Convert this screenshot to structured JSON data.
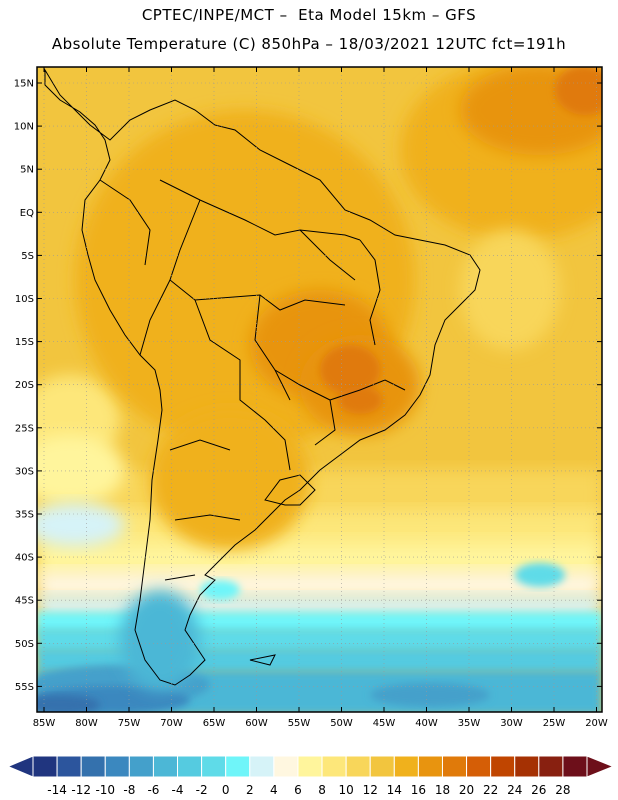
{
  "title_line1": "CPTEC/INPE/MCT –  Eta Model 15km – GFS",
  "title_line2": "Absolute Temperature (C) 850hPa – 18/03/2021 12UTC fct=191h",
  "map": {
    "lat_ticks": [
      "15N",
      "10N",
      "5N",
      "EQ",
      "5S",
      "10S",
      "15S",
      "20S",
      "25S",
      "30S",
      "35S",
      "40S",
      "45S",
      "50S",
      "55S"
    ],
    "lon_ticks": [
      "85W",
      "80W",
      "75W",
      "70W",
      "65W",
      "60W",
      "55W",
      "50W",
      "45W",
      "40W",
      "35W",
      "30W",
      "25W",
      "20W"
    ]
  },
  "colorbar": {
    "labels": [
      "-14",
      "-12",
      "-10",
      "-8",
      "-6",
      "-4",
      "-2",
      "0",
      "2",
      "4",
      "6",
      "8",
      "10",
      "12",
      "14",
      "16",
      "18",
      "20",
      "22",
      "24",
      "26",
      "28"
    ],
    "colors": [
      "#20357f",
      "#2c559d",
      "#3471ad",
      "#3b88bf",
      "#44a0cb",
      "#4cb7d6",
      "#55cbe0",
      "#5fdbe8",
      "#6ff5f9",
      "#d6f3f8",
      "#fff7e0",
      "#fff59c",
      "#fde77a",
      "#f8d65a",
      "#f2c53e",
      "#f0b11c",
      "#e8940f",
      "#e07a0a",
      "#d55e06",
      "#c04500",
      "#a53103",
      "#882010",
      "#6d0f1a"
    ]
  }
}
